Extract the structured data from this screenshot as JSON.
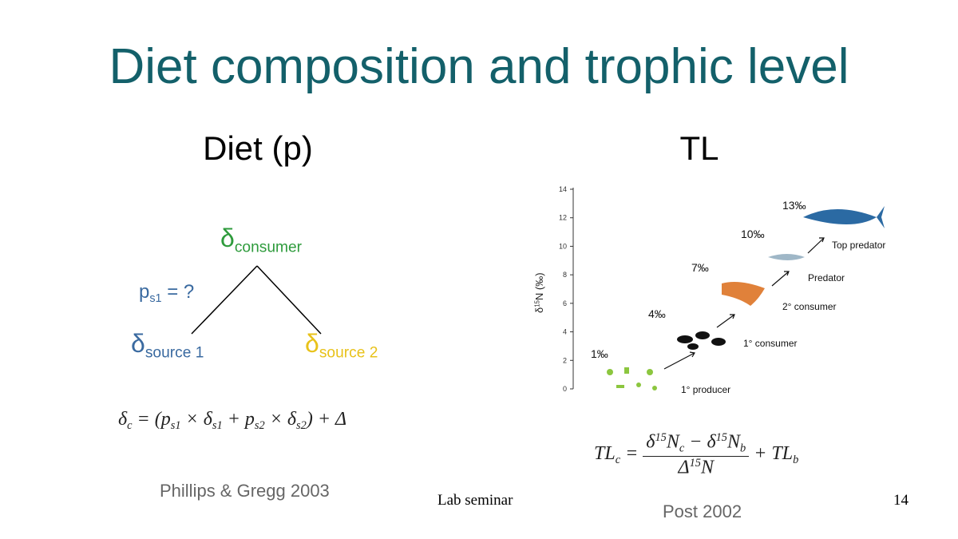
{
  "title": "Diet composition and trophic level",
  "left": {
    "heading": "Diet (p)",
    "consumer": {
      "base": "δ",
      "sub": "consumer"
    },
    "question": [
      {
        "base": "p",
        "sub": "s1"
      },
      {
        "base": " = ?"
      }
    ],
    "source1": {
      "base": "δ",
      "sub": "source 1"
    },
    "source2": {
      "base": "δ",
      "sub": "source 2"
    },
    "formula": [
      {
        "base": "δ",
        "sub": "c"
      },
      {
        "base": " = (p",
        "sub": "s1"
      },
      {
        "base": " × δ",
        "sub": "s1"
      },
      {
        "base": " + p",
        "sub": "s2"
      },
      {
        "base": " × δ",
        "sub": "s2"
      },
      {
        "base": ") + Δ"
      }
    ],
    "citation": "Phillips & Gregg 2003"
  },
  "right": {
    "heading": "TL",
    "figure": {
      "y_label": [
        {
          "base": "δ",
          "sup": "15"
        },
        {
          "base": "N (‰)"
        }
      ],
      "ylim": [
        0,
        14
      ],
      "yticks": [
        0,
        2,
        4,
        6,
        8,
        10,
        12,
        14
      ],
      "enrichment_labels": [
        "1‰",
        "4‰",
        "7‰",
        "10‰",
        "13‰"
      ],
      "levels": [
        "1° producer",
        "1° consumer",
        "2° consumer",
        "Predator",
        "Top predator"
      ]
    },
    "formula": {
      "lhs": [
        {
          "base": "TL",
          "sub": "c"
        },
        {
          "base": " ="
        }
      ],
      "numerator": [
        {
          "base": "δ",
          "sup": "15"
        },
        {
          "base": "N",
          "sub": "c"
        },
        {
          "base": " − δ",
          "sup": "15"
        },
        {
          "base": "N",
          "sub": "b"
        }
      ],
      "denominator": [
        {
          "base": "Δ",
          "sup": "15"
        },
        {
          "base": "N"
        }
      ],
      "rhs": [
        {
          "base": "+ TL",
          "sub": "b"
        }
      ]
    },
    "citation": "Post 2002"
  },
  "footer": {
    "center": "Lab seminar",
    "page": "14"
  }
}
